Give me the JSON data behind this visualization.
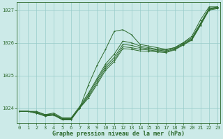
{
  "x": [
    0,
    1,
    2,
    3,
    4,
    5,
    6,
    7,
    8,
    9,
    10,
    11,
    12,
    13,
    14,
    15,
    16,
    17,
    18,
    19,
    20,
    21,
    22,
    23
  ],
  "line_main": [
    1023.9,
    1023.9,
    1023.85,
    1023.75,
    1023.8,
    1023.65,
    1023.65,
    1024.0,
    1024.7,
    1025.3,
    1025.8,
    1026.35,
    1026.4,
    1026.25,
    1025.95,
    1025.9,
    1025.85,
    1025.8,
    1025.85,
    1026.0,
    1026.2,
    1026.7,
    1027.1,
    1027.1
  ],
  "line2": [
    1023.9,
    1023.9,
    1023.9,
    1023.8,
    1023.85,
    1023.7,
    1023.7,
    1024.05,
    1024.45,
    1024.9,
    1025.35,
    1025.65,
    1026.05,
    1026.0,
    1025.9,
    1025.85,
    1025.8,
    1025.78,
    1025.85,
    1026.0,
    1026.15,
    1026.6,
    1027.05,
    1027.1
  ],
  "line3": [
    1023.9,
    1023.9,
    1023.88,
    1023.8,
    1023.82,
    1023.68,
    1023.68,
    1024.02,
    1024.4,
    1024.85,
    1025.28,
    1025.55,
    1025.95,
    1025.92,
    1025.85,
    1025.82,
    1025.78,
    1025.75,
    1025.82,
    1025.97,
    1026.12,
    1026.57,
    1027.03,
    1027.08
  ],
  "line4": [
    1023.9,
    1023.9,
    1023.86,
    1023.78,
    1023.8,
    1023.66,
    1023.66,
    1024.01,
    1024.35,
    1024.78,
    1025.22,
    1025.48,
    1025.88,
    1025.85,
    1025.8,
    1025.78,
    1025.75,
    1025.72,
    1025.8,
    1025.95,
    1026.1,
    1026.55,
    1027.02,
    1027.07
  ],
  "line5": [
    1023.9,
    1023.9,
    1023.84,
    1023.76,
    1023.78,
    1023.64,
    1023.64,
    1024.0,
    1024.3,
    1024.72,
    1025.16,
    1025.42,
    1025.82,
    1025.8,
    1025.75,
    1025.74,
    1025.72,
    1025.7,
    1025.78,
    1025.93,
    1026.08,
    1026.53,
    1027.0,
    1027.05
  ],
  "color": "#2d6a2d",
  "bg_color": "#cceae8",
  "grid_color": "#99ccca",
  "xlabel": "Graphe pression niveau de la mer (hPa)",
  "ylim": [
    1023.55,
    1027.25
  ],
  "yticks": [
    1024,
    1025,
    1026,
    1027
  ],
  "xticks": [
    0,
    1,
    2,
    3,
    4,
    5,
    6,
    7,
    8,
    9,
    10,
    11,
    12,
    13,
    14,
    15,
    16,
    17,
    18,
    19,
    20,
    21,
    22,
    23
  ]
}
